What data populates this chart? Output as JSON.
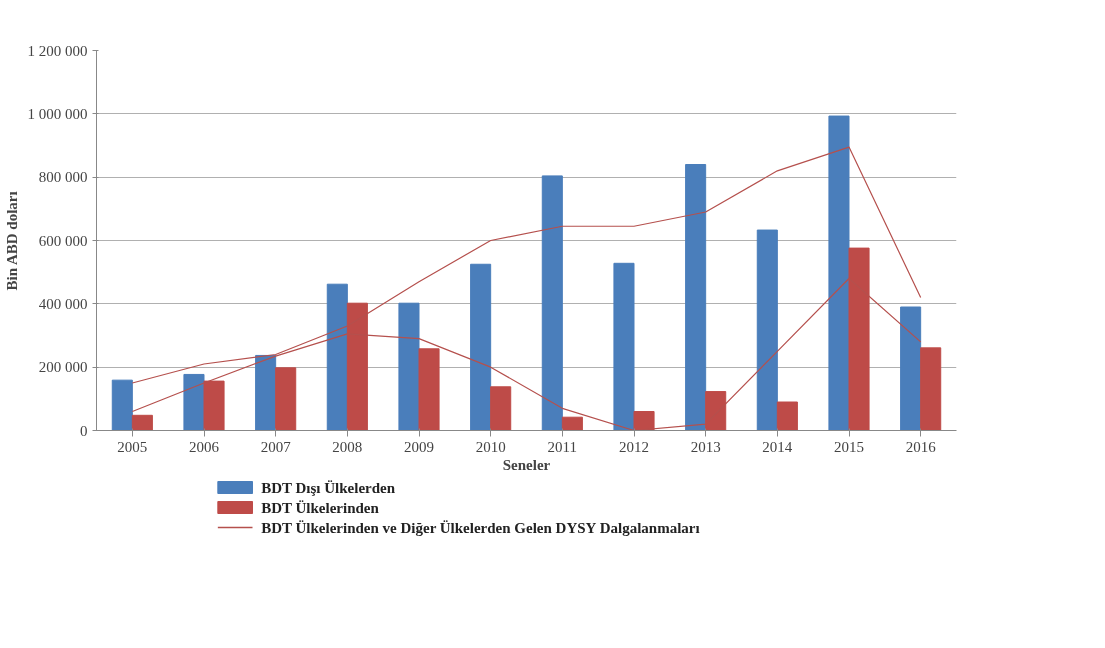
{
  "chart_data": {
    "type": "bar",
    "xlabel": "Seneler",
    "ylabel": "Bin ABD doları",
    "categories": [
      "2005",
      "2006",
      "2007",
      "2008",
      "2009",
      "2010",
      "2011",
      "2012",
      "2013",
      "2014",
      "2015",
      "2016"
    ],
    "series": [
      {
        "name": "BDT Dışı Ülkelerden",
        "color": "#4a7ebb",
        "values": [
          159000,
          177000,
          237000,
          462000,
          402000,
          525000,
          804000,
          528000,
          840000,
          633000,
          993000,
          390000
        ]
      },
      {
        "name": "BDT Ülkelerinden",
        "color": "#be4b48",
        "values": [
          48000,
          156000,
          198000,
          402000,
          258000,
          138000,
          42000,
          60000,
          123000,
          90000,
          576000,
          261000
        ]
      },
      {
        "name": "BDT Ülkelerinden ve Diğer Ülkelerden Gelen DYSY Dalgalanmaları",
        "type": "line",
        "color": "#b5504d",
        "values": [
          150000,
          210000,
          240000,
          330000,
          470000,
          600000,
          645000,
          645000,
          690000,
          820000,
          895000,
          420000
        ]
      },
      {
        "type": "line",
        "color": "#b5504d",
        "values": [
          60000,
          150000,
          235000,
          305000,
          290000,
          200000,
          70000,
          0,
          20000,
          250000,
          480000,
          280000
        ]
      }
    ],
    "ylim": [
      0,
      1200000
    ],
    "yticks": [
      0,
      {
        "value": 200000,
        "label": "200 000"
      },
      {
        "value": 400000,
        "label": "400 000"
      },
      {
        "value": 600000,
        "label": "600 000"
      },
      {
        "value": 800000,
        "label": "800 000"
      },
      {
        "value": 1000000,
        "label": "1 000 000"
      },
      {
        "value": 1200000,
        "label": "1 200 000"
      }
    ],
    "grid": "y",
    "legend": "bottom left",
    "line_style": "solid"
  }
}
